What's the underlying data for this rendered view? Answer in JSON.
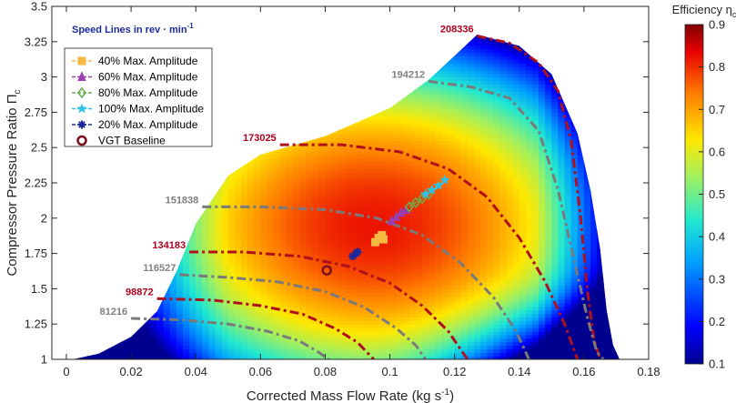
{
  "chart_data": {
    "type": "contour",
    "xlabel": "Corrected Mass Flow Rate (kg s",
    "xlabel_sup": "-1",
    "xlabel_end": ")",
    "ylabel": "Compressor Pressure Ratio Π",
    "ylabel_sub": "c",
    "xlim": [
      0,
      0.18
    ],
    "ylim": [
      1,
      3.5
    ],
    "x_ticks": [
      "0",
      "0.02",
      "0.04",
      "0.06",
      "0.08",
      "0.1",
      "0.12",
      "0.14",
      "0.16",
      "0.18"
    ],
    "y_ticks": [
      "1",
      "1.25",
      "1.5",
      "1.75",
      "2",
      "2.25",
      "2.5",
      "2.75",
      "3",
      "3.25",
      "3.5"
    ],
    "annotation": "Speed Lines in rev · min",
    "annotation_sup": "-1",
    "colorbar": {
      "title": "Efficiency η",
      "title_sub": "c",
      "range": [
        0.1,
        0.9
      ],
      "ticks": [
        "0.9",
        "0.8",
        "0.7",
        "0.6",
        "0.5",
        "0.4",
        "0.3",
        "0.2",
        "0.1"
      ]
    },
    "envelope": [
      [
        0.002,
        1.0
      ],
      [
        0.01,
        1.04
      ],
      [
        0.02,
        1.16
      ],
      [
        0.028,
        1.34
      ],
      [
        0.034,
        1.62
      ],
      [
        0.04,
        1.96
      ],
      [
        0.05,
        2.3
      ],
      [
        0.06,
        2.45
      ],
      [
        0.08,
        2.58
      ],
      [
        0.1,
        2.78
      ],
      [
        0.112,
        2.98
      ],
      [
        0.12,
        3.15
      ],
      [
        0.127,
        3.3
      ],
      [
        0.14,
        3.22
      ],
      [
        0.15,
        3.02
      ],
      [
        0.158,
        2.6
      ],
      [
        0.162,
        2.2
      ],
      [
        0.165,
        1.78
      ],
      [
        0.167,
        1.35
      ],
      [
        0.169,
        1.1
      ],
      [
        0.171,
        1.0
      ]
    ],
    "efficiency_field": {
      "peak": {
        "x": 0.095,
        "y": 1.95,
        "value": 0.82
      },
      "min_region": "high flow, low pressure ratio",
      "min_value": 0.1
    },
    "speed_lines": [
      {
        "speed": "208336",
        "label_color": "#b00020",
        "line_color": "#b0101e",
        "points": [
          [
            0.127,
            3.29
          ],
          [
            0.137,
            3.24
          ],
          [
            0.146,
            3.1
          ],
          [
            0.152,
            2.9
          ],
          [
            0.156,
            2.55
          ],
          [
            0.159,
            2.0
          ],
          [
            0.161,
            1.5
          ],
          [
            0.163,
            1.15
          ],
          [
            0.165,
            1.0
          ]
        ]
      },
      {
        "speed": "194212",
        "label_color": "#7f7f7f",
        "line_color": "#7a7a7a",
        "points": [
          [
            0.112,
            2.97
          ],
          [
            0.125,
            2.93
          ],
          [
            0.137,
            2.85
          ],
          [
            0.146,
            2.62
          ],
          [
            0.152,
            2.2
          ],
          [
            0.157,
            1.7
          ],
          [
            0.161,
            1.3
          ],
          [
            0.164,
            1.05
          ],
          [
            0.166,
            1.0
          ]
        ]
      },
      {
        "speed": "173025",
        "label_color": "#b00020",
        "line_color": "#b0101e",
        "points": [
          [
            0.066,
            2.52
          ],
          [
            0.085,
            2.52
          ],
          [
            0.103,
            2.47
          ],
          [
            0.118,
            2.35
          ],
          [
            0.13,
            2.15
          ],
          [
            0.14,
            1.86
          ],
          [
            0.148,
            1.55
          ],
          [
            0.154,
            1.25
          ],
          [
            0.158,
            1.0
          ]
        ]
      },
      {
        "speed": "151838",
        "label_color": "#7f7f7f",
        "line_color": "#7a7a7a",
        "points": [
          [
            0.042,
            2.08
          ],
          [
            0.06,
            2.08
          ],
          [
            0.08,
            2.06
          ],
          [
            0.096,
            2.0
          ],
          [
            0.11,
            1.88
          ],
          [
            0.122,
            1.68
          ],
          [
            0.132,
            1.44
          ],
          [
            0.139,
            1.2
          ],
          [
            0.143,
            1.0
          ]
        ]
      },
      {
        "speed": "134183",
        "label_color": "#b00020",
        "line_color": "#b0101e",
        "points": [
          [
            0.038,
            1.76
          ],
          [
            0.055,
            1.76
          ],
          [
            0.072,
            1.73
          ],
          [
            0.087,
            1.66
          ],
          [
            0.1,
            1.54
          ],
          [
            0.11,
            1.38
          ],
          [
            0.118,
            1.2
          ],
          [
            0.124,
            1.0
          ]
        ]
      },
      {
        "speed": "116527",
        "label_color": "#7f7f7f",
        "line_color": "#7a7a7a",
        "points": [
          [
            0.035,
            1.6
          ],
          [
            0.05,
            1.58
          ],
          [
            0.065,
            1.55
          ],
          [
            0.08,
            1.48
          ],
          [
            0.092,
            1.37
          ],
          [
            0.102,
            1.22
          ],
          [
            0.108,
            1.1
          ],
          [
            0.111,
            1.0
          ]
        ]
      },
      {
        "speed": "98872",
        "label_color": "#b00020",
        "line_color": "#b0101e",
        "points": [
          [
            0.028,
            1.43
          ],
          [
            0.045,
            1.42
          ],
          [
            0.06,
            1.38
          ],
          [
            0.073,
            1.32
          ],
          [
            0.083,
            1.22
          ],
          [
            0.09,
            1.12
          ],
          [
            0.095,
            1.0
          ]
        ]
      },
      {
        "speed": "81216",
        "label_color": "#7f7f7f",
        "line_color": "#7a7a7a",
        "points": [
          [
            0.02,
            1.29
          ],
          [
            0.035,
            1.28
          ],
          [
            0.05,
            1.25
          ],
          [
            0.062,
            1.2
          ],
          [
            0.072,
            1.13
          ],
          [
            0.078,
            1.05
          ],
          [
            0.081,
            1.0
          ]
        ]
      }
    ],
    "series": [
      {
        "name": "40% Max. Amplitude",
        "color": "#f5b942",
        "marker": "square",
        "points": [
          [
            0.0955,
            1.83
          ],
          [
            0.0965,
            1.86
          ],
          [
            0.098,
            1.85
          ],
          [
            0.0975,
            1.88
          ]
        ]
      },
      {
        "name": "60% Max. Amplitude",
        "color": "#9a3fb0",
        "marker": "triangle",
        "points": [
          [
            0.1005,
            1.98
          ],
          [
            0.102,
            2.01
          ],
          [
            0.1035,
            2.04
          ],
          [
            0.105,
            2.06
          ]
        ]
      },
      {
        "name": "80% Max. Amplitude",
        "color": "#6ab04c",
        "marker": "diamond",
        "points": [
          [
            0.106,
            2.08
          ],
          [
            0.108,
            2.11
          ],
          [
            0.11,
            2.14
          ],
          [
            0.112,
            2.17
          ]
        ]
      },
      {
        "name": "100% Max. Amplitude",
        "color": "#2ec4e8",
        "marker": "star",
        "points": [
          [
            0.111,
            2.17
          ],
          [
            0.113,
            2.2
          ],
          [
            0.115,
            2.23
          ],
          [
            0.117,
            2.27
          ]
        ]
      },
      {
        "name": "20% Max. Amplitude",
        "color": "#1a2a9a",
        "marker": "asterisk",
        "points": [
          [
            0.0885,
            1.73
          ],
          [
            0.0895,
            1.75
          ],
          [
            0.09,
            1.76
          ]
        ]
      },
      {
        "name": "VGT Baseline",
        "color": "#7a1020",
        "marker": "circle",
        "points": [
          [
            0.0805,
            1.63
          ]
        ]
      }
    ],
    "legend": {
      "position": "top-left"
    }
  }
}
